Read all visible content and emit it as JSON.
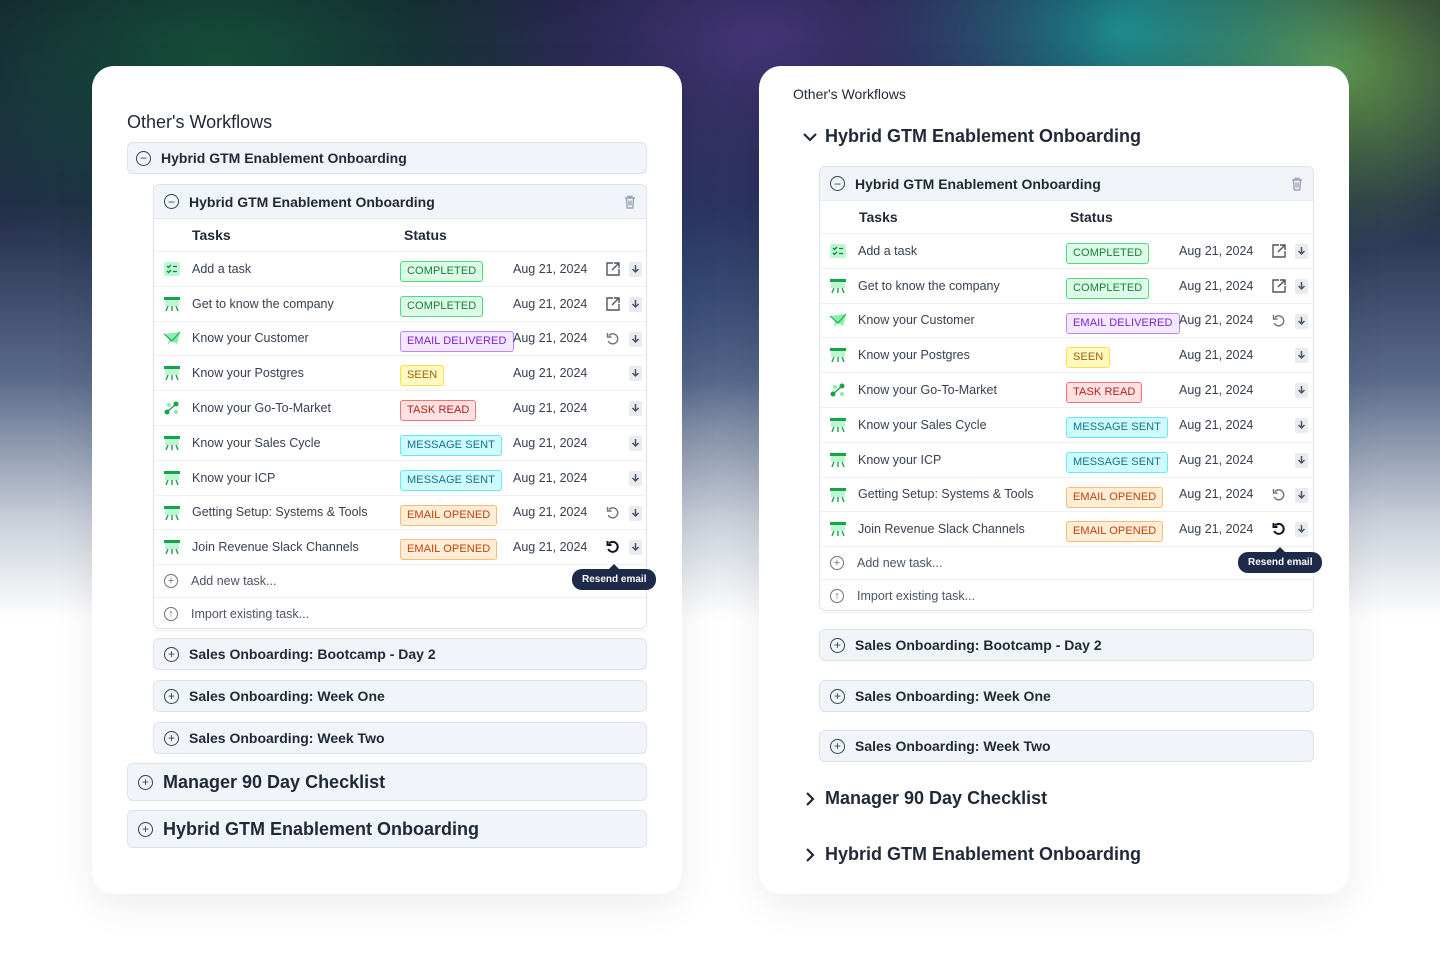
{
  "left": {
    "title": "Other's Workflows",
    "group": "Hybrid GTM Enablement Onboarding",
    "panel": {
      "title": "Hybrid GTM Enablement Onboarding",
      "col_tasks": "Tasks",
      "col_status": "Status",
      "rows": [
        {
          "icon": "checklist-icon",
          "name": "Add a task",
          "status": "COMPLETED",
          "date": "Aug 21, 2024",
          "action": "open"
        },
        {
          "icon": "presentation-icon",
          "name": "Get to know the company",
          "status": "COMPLETED",
          "date": "Aug 21, 2024",
          "action": "open"
        },
        {
          "icon": "email-icon",
          "name": "Know your Customer",
          "status": "EMAIL DELIVERED",
          "date": "Aug 21, 2024",
          "action": "resend"
        },
        {
          "icon": "presentation-icon",
          "name": "Know your Postgres",
          "status": "SEEN",
          "date": "Aug 21, 2024",
          "action": ""
        },
        {
          "icon": "workflow-icon",
          "name": "Know your Go-To-Market",
          "status": "TASK READ",
          "date": "Aug 21, 2024",
          "action": ""
        },
        {
          "icon": "presentation-icon",
          "name": "Know your Sales Cycle",
          "status": "MESSAGE SENT",
          "date": "Aug 21, 2024",
          "action": ""
        },
        {
          "icon": "presentation-icon",
          "name": "Know your ICP",
          "status": "MESSAGE SENT",
          "date": "Aug 21, 2024",
          "action": ""
        },
        {
          "icon": "presentation-icon",
          "name": "Getting Setup: Systems & Tools",
          "status": "EMAIL OPENED",
          "date": "Aug 21, 2024",
          "action": "resend"
        },
        {
          "icon": "presentation-icon",
          "name": "Join Revenue Slack Channels",
          "status": "EMAIL OPENED",
          "date": "Aug 21, 2024",
          "action": "resend-active"
        }
      ],
      "add_new": "Add new task...",
      "import_existing": "Import existing task...",
      "tooltip": "Resend email"
    },
    "sub_groups": [
      "Sales Onboarding: Bootcamp - Day 2",
      "Sales Onboarding: Week One",
      "Sales Onboarding: Week Two"
    ],
    "groups": [
      "Manager 90 Day Checklist",
      "Hybrid GTM Enablement Onboarding"
    ]
  },
  "right": {
    "title": "Other's Workflows",
    "group": "Hybrid GTM Enablement Onboarding",
    "panel": {
      "title": "Hybrid GTM Enablement Onboarding",
      "col_tasks": "Tasks",
      "col_status": "Status",
      "rows": [
        {
          "icon": "checklist-icon",
          "name": "Add a task",
          "status": "COMPLETED",
          "date": "Aug 21, 2024",
          "action": "open"
        },
        {
          "icon": "presentation-icon",
          "name": "Get to know the company",
          "status": "COMPLETED",
          "date": "Aug 21, 2024",
          "action": "open"
        },
        {
          "icon": "email-icon",
          "name": "Know your Customer",
          "status": "EMAIL DELIVERED",
          "date": "Aug 21, 2024",
          "action": "resend"
        },
        {
          "icon": "presentation-icon",
          "name": "Know your Postgres",
          "status": "SEEN",
          "date": "Aug 21, 2024",
          "action": ""
        },
        {
          "icon": "workflow-icon",
          "name": "Know your Go-To-Market",
          "status": "TASK READ",
          "date": "Aug 21, 2024",
          "action": ""
        },
        {
          "icon": "presentation-icon",
          "name": "Know your Sales Cycle",
          "status": "MESSAGE SENT",
          "date": "Aug 21, 2024",
          "action": ""
        },
        {
          "icon": "presentation-icon",
          "name": "Know your ICP",
          "status": "MESSAGE SENT",
          "date": "Aug 21, 2024",
          "action": ""
        },
        {
          "icon": "presentation-icon",
          "name": "Getting Setup: Systems & Tools",
          "status": "EMAIL OPENED",
          "date": "Aug 21, 2024",
          "action": "resend"
        },
        {
          "icon": "presentation-icon",
          "name": "Join Revenue Slack Channels",
          "status": "EMAIL OPENED",
          "date": "Aug 21, 2024",
          "action": "resend-active"
        }
      ],
      "add_new": "Add new task...",
      "import_existing": "Import existing task...",
      "tooltip": "Resend email"
    },
    "sub_groups": [
      "Sales Onboarding: Bootcamp - Day 2",
      "Sales Onboarding: Week One",
      "Sales Onboarding: Week Two"
    ],
    "groups": [
      "Manager 90 Day Checklist",
      "Hybrid GTM Enablement Onboarding"
    ]
  },
  "colors": {
    "completed": "#15803d",
    "email_delivered": "#7e22ce",
    "seen": "#a16207",
    "task_read": "#b91c1c",
    "message_sent": "#0e7490",
    "email_opened": "#c2410c",
    "tooltip_bg": "#1e2a4a"
  }
}
